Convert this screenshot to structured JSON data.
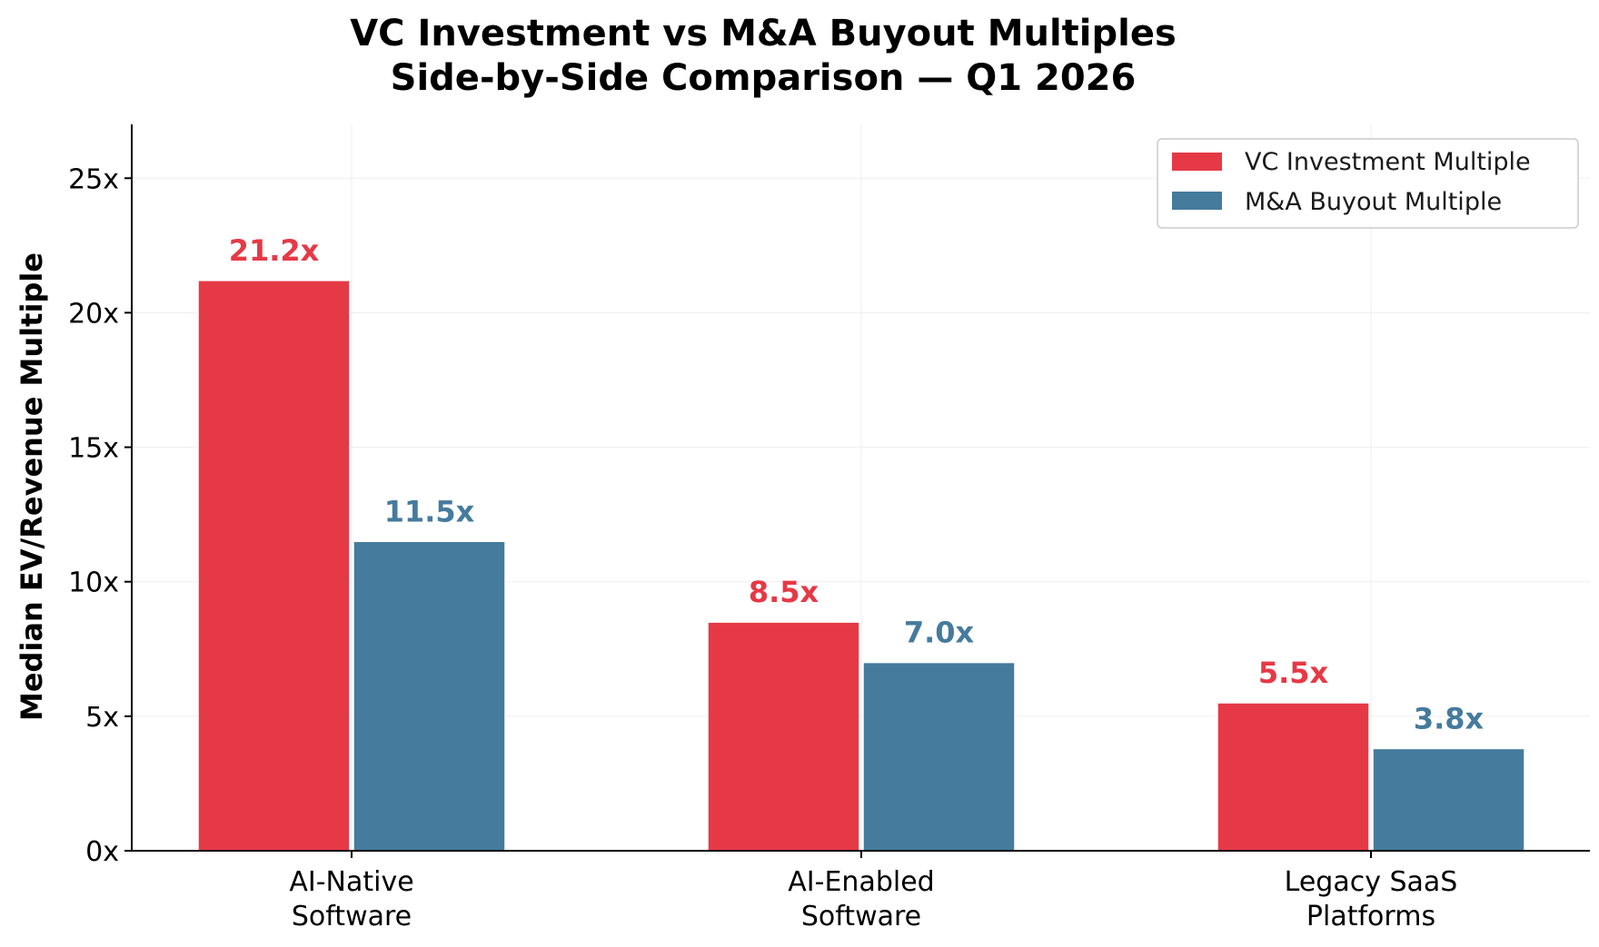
{
  "chart_data": {
    "type": "bar",
    "title": "VC Investment vs M&A Buyout Multiples",
    "subtitle": "Side-by-Side Comparison — Q1 2026",
    "xlabel": "",
    "ylabel": "Median EV/Revenue Multiple",
    "categories": [
      "AI-Native\nSoftware",
      "AI-Enabled\nSoftware",
      "Legacy SaaS\nPlatforms"
    ],
    "series": [
      {
        "name": "VC Investment Multiple",
        "color": "#e63946",
        "values": [
          21.2,
          8.5,
          5.5
        ],
        "labels": [
          "21.2x",
          "8.5x",
          "5.5x"
        ]
      },
      {
        "name": "M&A Buyout Multiple",
        "color": "#457b9d",
        "values": [
          11.5,
          7.0,
          3.8
        ],
        "labels": [
          "11.5x",
          "7.0x",
          "3.8x"
        ]
      }
    ],
    "ylim": [
      0,
      27
    ],
    "yticks": [
      0,
      5,
      10,
      15,
      20,
      25
    ],
    "ytick_labels": [
      "0x",
      "5x",
      "10x",
      "15x",
      "20x",
      "25x"
    ],
    "grid": true,
    "legend_position": "top-right"
  }
}
